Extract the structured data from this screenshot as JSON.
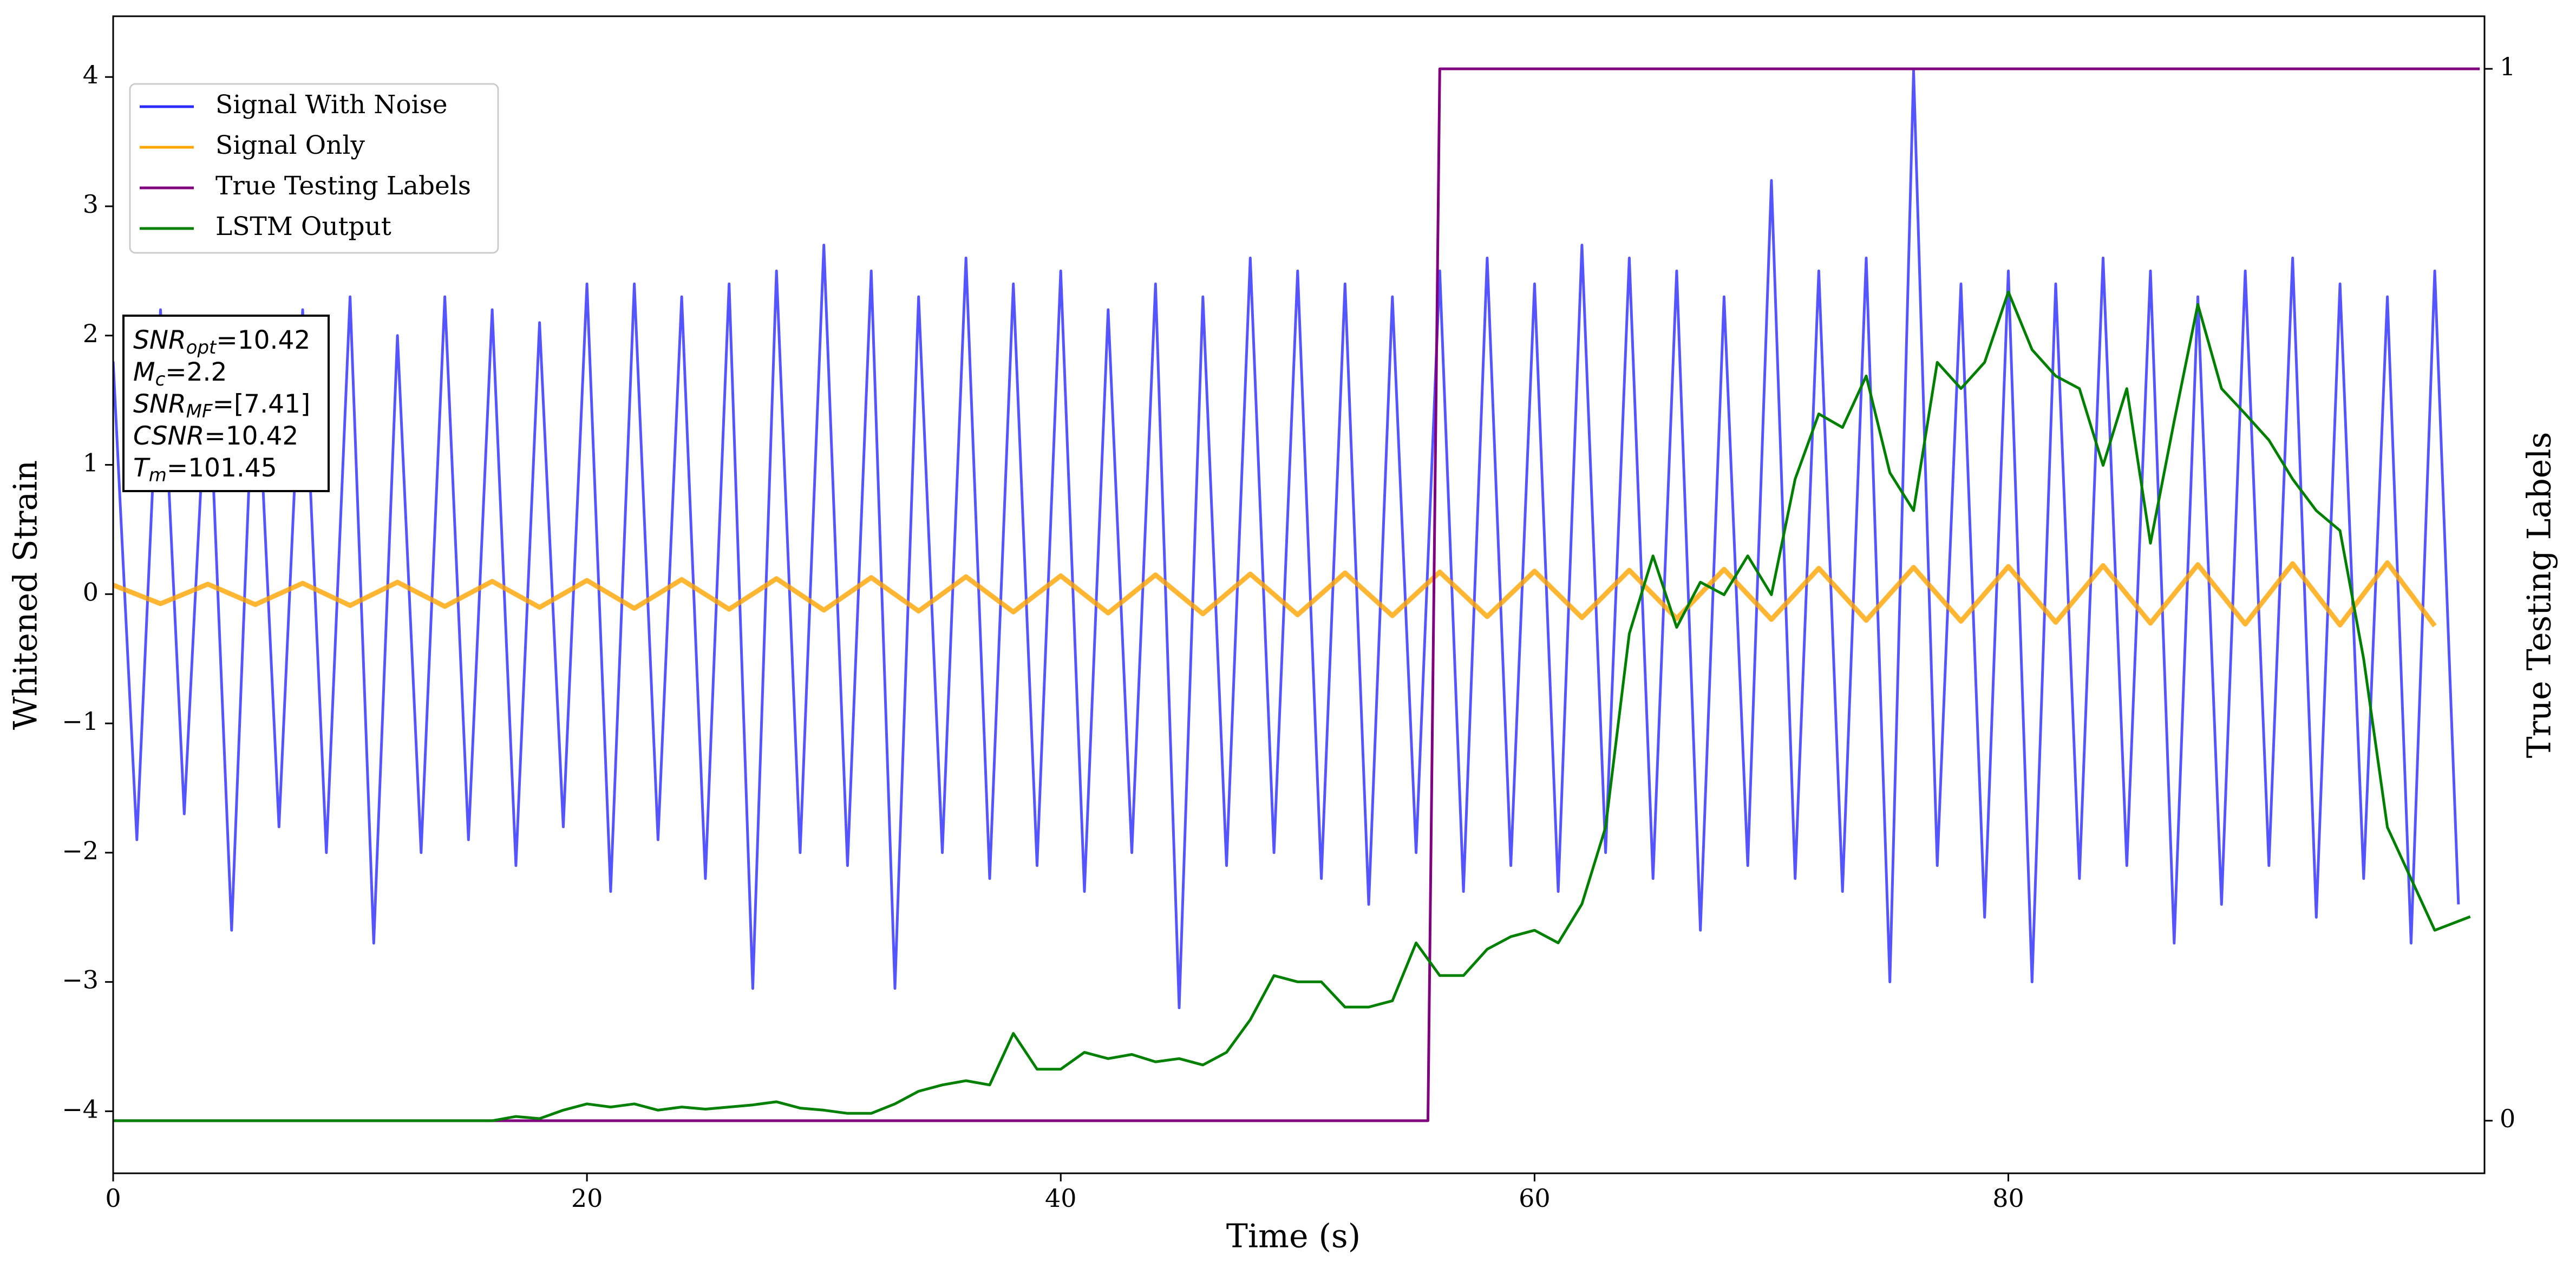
{
  "chart_data": {
    "type": "line",
    "xlabel": "Time (s)",
    "ylabel": "Whitened Strain",
    "y2label": "True Testing Labels",
    "xlim": [
      0,
      100.1
    ],
    "ylim": [
      -4.48,
      4.47
    ],
    "y2lim": [
      -0.05,
      1.05
    ],
    "xticks": [
      0,
      20,
      40,
      60,
      80
    ],
    "yticks": [
      {
        "value": -4,
        "label": "−4"
      },
      {
        "value": -3,
        "label": "−3"
      },
      {
        "value": -2,
        "label": "−2"
      },
      {
        "value": -1,
        "label": "−1"
      },
      0,
      1,
      2,
      3,
      4
    ],
    "y2ticks": [
      0,
      1
    ],
    "legend": "upper left",
    "series": [
      {
        "name": "Signal With Noise",
        "color": "#2b2bff",
        "x": [
          0,
          1,
          2,
          3,
          4,
          5,
          6,
          7,
          8,
          9,
          10,
          11,
          12,
          13,
          14,
          15,
          16,
          17,
          18,
          19,
          20,
          21,
          22,
          23,
          24,
          25,
          26,
          27,
          28,
          29,
          30,
          31,
          32,
          33,
          34,
          35,
          36,
          37,
          38,
          39,
          40,
          41,
          42,
          43,
          44,
          45,
          46,
          47,
          48,
          49,
          50,
          51,
          52,
          53,
          54,
          55,
          56,
          57,
          58,
          59,
          60,
          61,
          62,
          63,
          64,
          65,
          66,
          67,
          68,
          69,
          70,
          71,
          72,
          73,
          74,
          75,
          76,
          77,
          78,
          79,
          80,
          81,
          82,
          83,
          84,
          85,
          86,
          87,
          88,
          89,
          90,
          91,
          92,
          93,
          94,
          95,
          96,
          97,
          98,
          99
        ],
        "values": [
          1.8,
          -1.9,
          2.2,
          -1.7,
          1.9,
          -2.6,
          2.1,
          -1.8,
          2.2,
          -2.0,
          2.3,
          -2.7,
          2.0,
          -2.0,
          2.3,
          -1.9,
          2.2,
          -2.1,
          2.1,
          -1.8,
          2.4,
          -2.3,
          2.4,
          -1.9,
          2.3,
          -2.2,
          2.4,
          -3.05,
          2.5,
          -2.0,
          2.7,
          -2.1,
          2.5,
          -3.05,
          2.3,
          -2.0,
          2.6,
          -2.2,
          2.4,
          -2.1,
          2.5,
          -2.3,
          2.2,
          -2.0,
          2.4,
          -3.2,
          2.3,
          -2.1,
          2.6,
          -2.0,
          2.5,
          -2.2,
          2.4,
          -2.4,
          2.3,
          -2.0,
          2.5,
          -2.3,
          2.6,
          -2.1,
          2.4,
          -2.3,
          2.7,
          -2.0,
          2.6,
          -2.2,
          2.5,
          -2.6,
          2.3,
          -2.1,
          3.2,
          -2.2,
          2.5,
          -2.3,
          2.6,
          -3.0,
          4.05,
          -2.1,
          2.4,
          -2.5,
          2.5,
          -3.0,
          2.4,
          -2.2,
          2.6,
          -2.1,
          2.5,
          -2.7,
          2.3,
          -2.4,
          2.5,
          -2.1,
          2.6,
          -2.5,
          2.4,
          -2.2,
          2.3,
          -2.7,
          2.5,
          -2.4
        ]
      },
      {
        "name": "Signal Only",
        "color": "#ffa500",
        "x": [
          0,
          2,
          4,
          6,
          8,
          10,
          12,
          14,
          16,
          18,
          20,
          22,
          24,
          26,
          28,
          30,
          32,
          34,
          36,
          38,
          40,
          42,
          44,
          46,
          48,
          50,
          52,
          54,
          56,
          58,
          60,
          62,
          64,
          66,
          68,
          70,
          72,
          74,
          76,
          78,
          80,
          82,
          84,
          86,
          88,
          90,
          92,
          94,
          96,
          98
        ],
        "values": [
          0.07,
          -0.074,
          0.077,
          -0.081,
          0.084,
          -0.088,
          0.092,
          -0.095,
          0.099,
          -0.102,
          0.106,
          -0.11,
          0.113,
          -0.117,
          0.12,
          -0.124,
          0.128,
          -0.131,
          0.135,
          -0.138,
          0.142,
          -0.146,
          0.149,
          -0.153,
          0.156,
          -0.16,
          0.164,
          -0.167,
          0.171,
          -0.174,
          0.178,
          -0.182,
          0.185,
          -0.189,
          0.192,
          -0.196,
          0.2,
          -0.203,
          0.207,
          -0.21,
          0.214,
          -0.218,
          0.221,
          -0.225,
          0.228,
          -0.232,
          0.236,
          -0.239,
          0.243,
          -0.246
        ]
      },
      {
        "name": "True Testing Labels",
        "color": "#800080",
        "axis": "y2",
        "x": [
          0,
          55.5,
          56,
          99.9
        ],
        "values": [
          0,
          0,
          1,
          1
        ]
      },
      {
        "name": "LSTM Output",
        "color": "#008000",
        "axis": "y2",
        "x": [
          0,
          16,
          17,
          18,
          19,
          20,
          21,
          22,
          23,
          24,
          25,
          26,
          27,
          28,
          29,
          30,
          31,
          32,
          33,
          34,
          35,
          36,
          37,
          38,
          39,
          40,
          41,
          42,
          43,
          44,
          45,
          46,
          47,
          48,
          49,
          50,
          51,
          52,
          53,
          54,
          55,
          56,
          57,
          58,
          59,
          60,
          61,
          62,
          63,
          64,
          65,
          66,
          67,
          68,
          69,
          70,
          71,
          72,
          73,
          74,
          75,
          76,
          77,
          78,
          79,
          80,
          81,
          82,
          83,
          84,
          85,
          86,
          87,
          88,
          89,
          90,
          91,
          92,
          93,
          94,
          95,
          96,
          97,
          98,
          99.5
        ],
        "values": [
          0,
          0,
          0.004,
          0.002,
          0.01,
          0.016,
          0.013,
          0.016,
          0.01,
          0.013,
          0.011,
          0.013,
          0.015,
          0.018,
          0.012,
          0.01,
          0.007,
          0.007,
          0.016,
          0.028,
          0.034,
          0.038,
          0.034,
          0.083,
          0.049,
          0.049,
          0.065,
          0.059,
          0.063,
          0.056,
          0.059,
          0.053,
          0.065,
          0.096,
          0.138,
          0.132,
          0.132,
          0.108,
          0.108,
          0.114,
          0.169,
          0.138,
          0.138,
          0.163,
          0.175,
          0.181,
          0.169,
          0.206,
          0.279,
          0.463,
          0.537,
          0.469,
          0.512,
          0.5,
          0.537,
          0.5,
          0.61,
          0.672,
          0.659,
          0.708,
          0.616,
          0.58,
          0.721,
          0.696,
          0.721,
          0.788,
          0.733,
          0.708,
          0.696,
          0.623,
          0.696,
          0.549,
          0.665,
          0.776,
          0.696,
          0.672,
          0.647,
          0.61,
          0.58,
          0.561,
          0.439,
          0.279,
          0.23,
          0.181,
          0.194
        ]
      }
    ],
    "annotations": [
      {
        "text": "SNR",
        "sub": "opt",
        "rest": "=10.42"
      },
      {
        "text": "M",
        "sub": "c",
        "rest": "=2.2"
      },
      {
        "text": "SNR",
        "sub": "MF",
        "rest": "=[7.41]"
      },
      {
        "text": "CSNR",
        "rest": "=10.42"
      },
      {
        "text": "T",
        "sub": "m",
        "rest": "=101.45"
      }
    ]
  }
}
